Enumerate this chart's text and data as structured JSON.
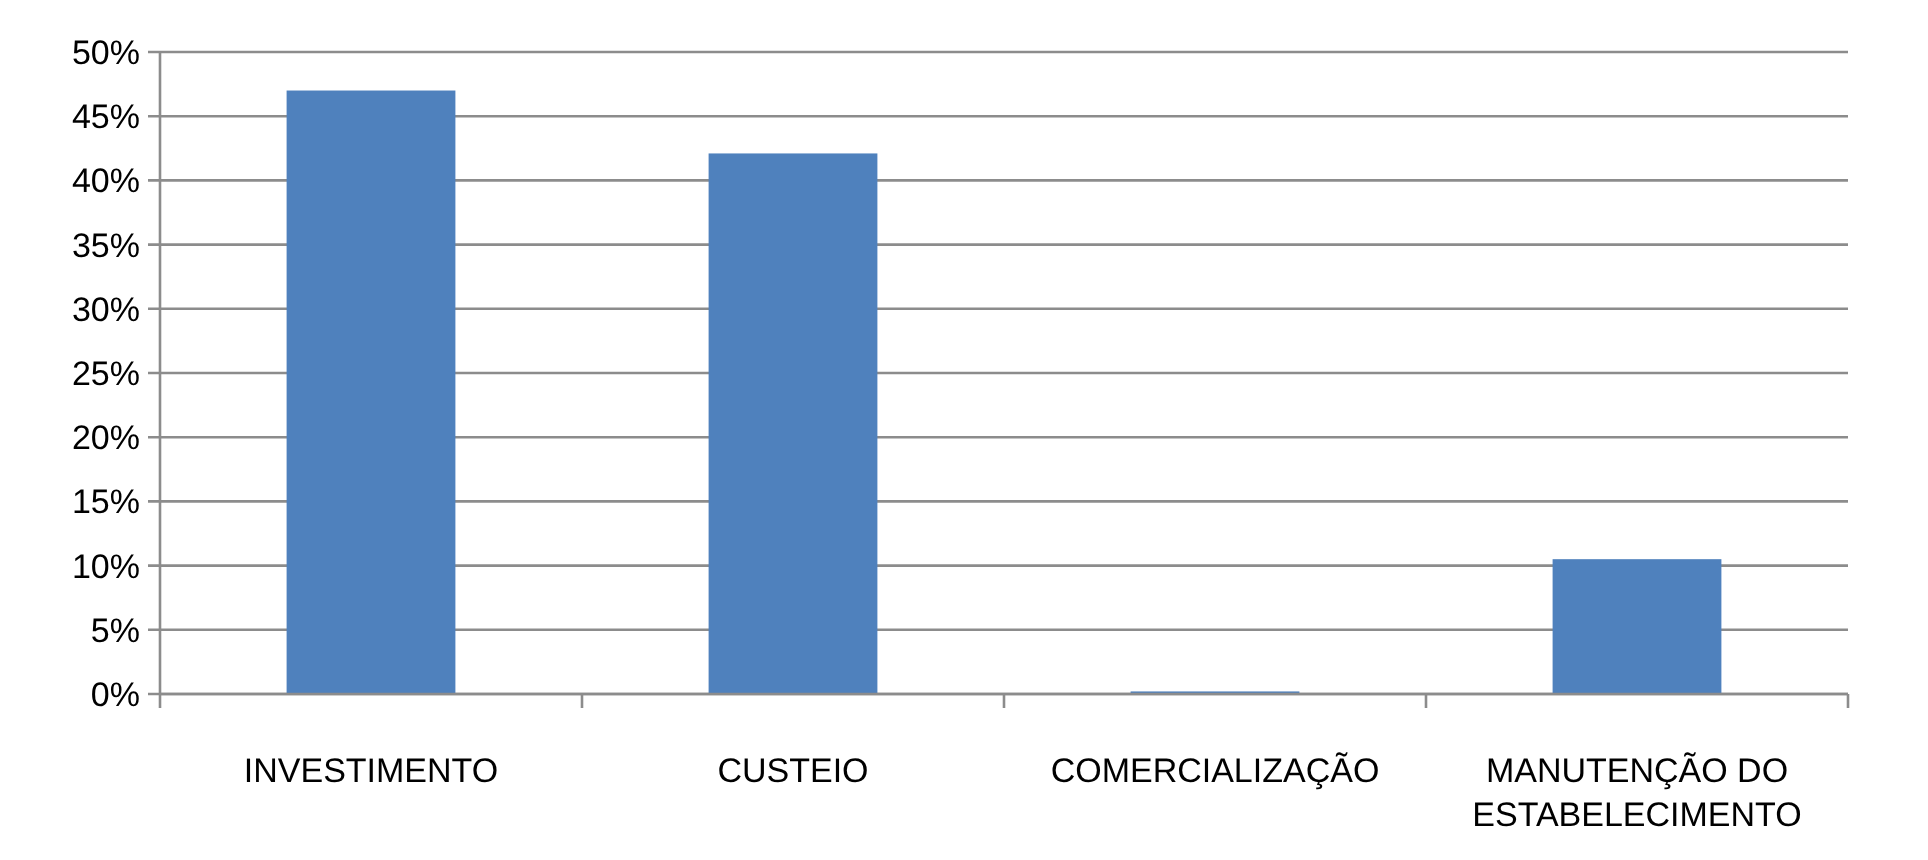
{
  "chart_data": {
    "type": "bar",
    "categories": [
      "INVESTIMENTO",
      "CUSTEIO",
      "COMERCIALIZAÇÃO",
      "MANUTENÇÃO DO ESTABELECIMENTO"
    ],
    "values": [
      47.0,
      42.1,
      0.2,
      10.5
    ],
    "color": "#4f81bd",
    "ylim": [
      0,
      50
    ],
    "yticks": [
      {
        "value": 0,
        "label": "0%"
      },
      {
        "value": 5,
        "label": "5%"
      },
      {
        "value": 10,
        "label": "10%"
      },
      {
        "value": 15,
        "label": "15%"
      },
      {
        "value": 20,
        "label": "20%"
      },
      {
        "value": 25,
        "label": "25%"
      },
      {
        "value": 30,
        "label": "30%"
      },
      {
        "value": 35,
        "label": "35%"
      },
      {
        "value": 40,
        "label": "40%"
      },
      {
        "value": 45,
        "label": "45%"
      },
      {
        "value": 50,
        "label": "50%"
      }
    ],
    "grid": "y"
  }
}
